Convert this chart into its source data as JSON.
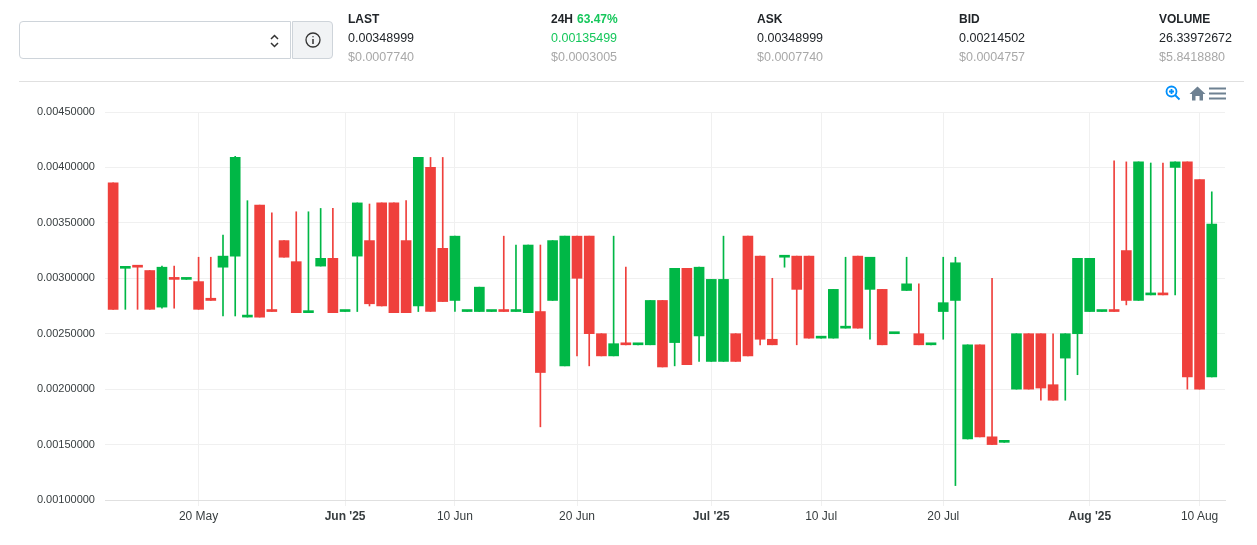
{
  "chart_data": [
    {
      "type": "other",
      "categories": [
        "LAST",
        "24H",
        "ASK",
        "BID",
        "VOLUME"
      ],
      "annotations": [
        "63.47%",
        "0.00348999",
        "$0.0007740",
        "0.00135499",
        "$0.0003005",
        "0.00348999",
        "$0.0007740",
        "0.00214502",
        "$0.0004757",
        "26.33972672",
        "$5.8418880"
      ],
      "colors": [
        "#16c75c",
        "#212529",
        "#a8a8a8",
        "#16c75c",
        "#a8a8a8",
        "#212529",
        "#a8a8a8",
        "#212529",
        "#a8a8a8",
        "#212529",
        "#a8a8a8"
      ]
    },
    {
      "type": "candlestick",
      "x": [
        "2025-05-13",
        "2025-05-14",
        "2025-05-15",
        "2025-05-16",
        "2025-05-17",
        "2025-05-18",
        "2025-05-19",
        "2025-05-20",
        "2025-05-21",
        "2025-05-22",
        "2025-05-23",
        "2025-05-24",
        "2025-05-25",
        "2025-05-26",
        "2025-05-27",
        "2025-05-28",
        "2025-05-29",
        "2025-05-30",
        "2025-05-31",
        "2025-06-01",
        "2025-06-02",
        "2025-06-03",
        "2025-06-04",
        "2025-06-05",
        "2025-06-06",
        "2025-06-07",
        "2025-06-08",
        "2025-06-09",
        "2025-06-10",
        "2025-06-11",
        "2025-06-12",
        "2025-06-13",
        "2025-06-14",
        "2025-06-15",
        "2025-06-16",
        "2025-06-17",
        "2025-06-18",
        "2025-06-19",
        "2025-06-20",
        "2025-06-21",
        "2025-06-22",
        "2025-06-23",
        "2025-06-24",
        "2025-06-25",
        "2025-06-26",
        "2025-06-27",
        "2025-06-28",
        "2025-06-29",
        "2025-06-30",
        "2025-07-01",
        "2025-07-02",
        "2025-07-03",
        "2025-07-04",
        "2025-07-05",
        "2025-07-06",
        "2025-07-07",
        "2025-07-08",
        "2025-07-09",
        "2025-07-10",
        "2025-07-11",
        "2025-07-12",
        "2025-07-13",
        "2025-07-14",
        "2025-07-15",
        "2025-07-16",
        "2025-07-17",
        "2025-07-18",
        "2025-07-19",
        "2025-07-20",
        "2025-07-21",
        "2025-07-22",
        "2025-07-23",
        "2025-07-24",
        "2025-07-25",
        "2025-07-26",
        "2025-07-27",
        "2025-07-28",
        "2025-07-29",
        "2025-07-30",
        "2025-07-31",
        "2025-08-01",
        "2025-08-02",
        "2025-08-03",
        "2025-08-04",
        "2025-08-05",
        "2025-08-06",
        "2025-08-07",
        "2025-08-08",
        "2025-08-09",
        "2025-08-10",
        "2025-08-11"
      ],
      "ohlc": [
        [
          0.00386,
          0.00386,
          0.00272,
          0.00272
        ],
        [
          0.00309,
          0.0031,
          0.00272,
          0.0031
        ],
        [
          0.00311,
          0.00311,
          0.00272,
          0.0031
        ],
        [
          0.00307,
          0.00307,
          0.00272,
          0.00272
        ],
        [
          0.00274,
          0.00311,
          0.00273,
          0.0031
        ],
        [
          0.003,
          0.00311,
          0.00273,
          0.00299
        ],
        [
          0.00299,
          0.003,
          0.00299,
          0.003
        ],
        [
          0.00297,
          0.00319,
          0.00272,
          0.00272
        ],
        [
          0.00282,
          0.00319,
          0.0028,
          0.0028
        ],
        [
          0.0031,
          0.00339,
          0.00266,
          0.0032
        ],
        [
          0.0032,
          0.0041,
          0.00266,
          0.00409
        ],
        [
          0.00265,
          0.0037,
          0.00265,
          0.00266
        ],
        [
          0.00366,
          0.00366,
          0.00265,
          0.00265
        ],
        [
          0.00271,
          0.00359,
          0.0027,
          0.0027
        ],
        [
          0.00334,
          0.00334,
          0.00319,
          0.00319
        ],
        [
          0.00315,
          0.0036,
          0.00269,
          0.00269
        ],
        [
          0.00269,
          0.0036,
          0.00269,
          0.0027
        ],
        [
          0.00311,
          0.00363,
          0.00311,
          0.00318
        ],
        [
          0.00318,
          0.00363,
          0.00269,
          0.00269
        ],
        [
          0.0027,
          0.00271,
          0.0027,
          0.00271
        ],
        [
          0.0032,
          0.00368,
          0.0027,
          0.00368
        ],
        [
          0.00334,
          0.00367,
          0.00275,
          0.00277
        ],
        [
          0.00368,
          0.00368,
          0.00275,
          0.00275
        ],
        [
          0.00368,
          0.00368,
          0.00269,
          0.00269
        ],
        [
          0.00334,
          0.0037,
          0.00269,
          0.00269
        ],
        [
          0.00275,
          0.00409,
          0.0027,
          0.00409
        ],
        [
          0.004,
          0.00409,
          0.0027,
          0.0027
        ],
        [
          0.00327,
          0.00409,
          0.00279,
          0.00279
        ],
        [
          0.0028,
          0.00338,
          0.0027,
          0.00338
        ],
        [
          0.0027,
          0.00271,
          0.0027,
          0.00271
        ],
        [
          0.0027,
          0.00292,
          0.0027,
          0.00292
        ],
        [
          0.0027,
          0.00271,
          0.0027,
          0.00271
        ],
        [
          0.00271,
          0.00338,
          0.0027,
          0.0027
        ],
        [
          0.0027,
          0.0033,
          0.0027,
          0.00271
        ],
        [
          0.00269,
          0.0033,
          0.00269,
          0.0033
        ],
        [
          0.0027,
          0.0033,
          0.00166,
          0.00215
        ],
        [
          0.0028,
          0.00334,
          0.0028,
          0.00334
        ],
        [
          0.00221,
          0.00338,
          0.00221,
          0.00338
        ],
        [
          0.00338,
          0.00338,
          0.0023,
          0.003
        ],
        [
          0.00338,
          0.00338,
          0.00221,
          0.0025
        ],
        [
          0.0025,
          0.0025,
          0.0023,
          0.0023
        ],
        [
          0.0023,
          0.00338,
          0.0023,
          0.00241
        ],
        [
          0.00241,
          0.0031,
          0.0024,
          0.0024
        ],
        [
          0.0024,
          0.00241,
          0.0024,
          0.00241
        ],
        [
          0.0024,
          0.0028,
          0.0024,
          0.0028
        ],
        [
          0.0028,
          0.0028,
          0.0022,
          0.0022
        ],
        [
          0.00242,
          0.00309,
          0.00221,
          0.00309
        ],
        [
          0.00309,
          0.00309,
          0.00222,
          0.00222
        ],
        [
          0.00248,
          0.0031,
          0.00225,
          0.0031
        ],
        [
          0.00225,
          0.00299,
          0.00225,
          0.00299
        ],
        [
          0.00225,
          0.00338,
          0.00225,
          0.00299
        ],
        [
          0.0025,
          0.0025,
          0.00225,
          0.00225
        ],
        [
          0.00338,
          0.00338,
          0.0023,
          0.0023
        ],
        [
          0.0032,
          0.0032,
          0.0024,
          0.00245
        ],
        [
          0.00245,
          0.003,
          0.0024,
          0.0024
        ],
        [
          0.00319,
          0.0032,
          0.0031,
          0.0032
        ],
        [
          0.0032,
          0.0032,
          0.0024,
          0.0029
        ],
        [
          0.0032,
          0.0032,
          0.00246,
          0.00246
        ],
        [
          0.00246,
          0.00247,
          0.00246,
          0.00247
        ],
        [
          0.00246,
          0.0029,
          0.00246,
          0.0029
        ],
        [
          0.00255,
          0.00319,
          0.00255,
          0.00256
        ],
        [
          0.0032,
          0.0032,
          0.00255,
          0.00255
        ],
        [
          0.0029,
          0.00319,
          0.00245,
          0.00319
        ],
        [
          0.0029,
          0.0029,
          0.0024,
          0.0024
        ],
        [
          0.0025,
          0.00251,
          0.0025,
          0.00251
        ],
        [
          0.00289,
          0.00319,
          0.00289,
          0.00295
        ],
        [
          0.0025,
          0.00295,
          0.0024,
          0.0024
        ],
        [
          0.0024,
          0.00241,
          0.0024,
          0.00241
        ],
        [
          0.0027,
          0.00319,
          0.00245,
          0.00278
        ],
        [
          0.0028,
          0.00319,
          0.00113,
          0.00314
        ],
        [
          0.00155,
          0.0024,
          0.00155,
          0.0024
        ],
        [
          0.0024,
          0.0024,
          0.00157,
          0.00157
        ],
        [
          0.00157,
          0.003,
          0.0015,
          0.0015
        ],
        [
          0.00152,
          0.00153,
          0.00152,
          0.00153
        ],
        [
          0.002,
          0.0025,
          0.002,
          0.0025
        ],
        [
          0.0025,
          0.0025,
          0.002,
          0.002
        ],
        [
          0.0025,
          0.0025,
          0.0019,
          0.00201
        ],
        [
          0.00204,
          0.0025,
          0.0019,
          0.0019
        ],
        [
          0.00228,
          0.0025,
          0.0019,
          0.0025
        ],
        [
          0.0025,
          0.00318,
          0.00213,
          0.00318
        ],
        [
          0.0027,
          0.00318,
          0.0027,
          0.00318
        ],
        [
          0.0027,
          0.00271,
          0.0027,
          0.00271
        ],
        [
          0.00271,
          0.00406,
          0.0027,
          0.0027
        ],
        [
          0.00325,
          0.00405,
          0.00276,
          0.0028
        ],
        [
          0.0028,
          0.00405,
          0.0028,
          0.00405
        ],
        [
          0.00285,
          0.00404,
          0.00285,
          0.00286
        ],
        [
          0.00286,
          0.00404,
          0.00285,
          0.00285
        ],
        [
          0.004,
          0.00405,
          0.00285,
          0.00405
        ],
        [
          0.00405,
          0.00405,
          0.002,
          0.00211
        ],
        [
          0.00389,
          0.00389,
          0.002,
          0.002
        ],
        [
          0.00211,
          0.00378,
          0.00211,
          0.00349
        ]
      ],
      "colors": [
        "#ef403c",
        "#00b746",
        "#ef403c",
        "#ef403c",
        "#00b746",
        "#ef403c",
        "#00b746",
        "#ef403c",
        "#ef403c",
        "#00b746",
        "#00b746",
        "#00b746",
        "#ef403c",
        "#ef403c",
        "#ef403c",
        "#ef403c",
        "#00b746",
        "#00b746",
        "#ef403c",
        "#00b746",
        "#00b746",
        "#ef403c",
        "#ef403c",
        "#ef403c",
        "#ef403c",
        "#00b746",
        "#ef403c",
        "#ef403c",
        "#00b746",
        "#00b746",
        "#00b746",
        "#00b746",
        "#ef403c",
        "#00b746",
        "#00b746",
        "#ef403c",
        "#00b746",
        "#00b746",
        "#ef403c",
        "#ef403c",
        "#ef403c",
        "#00b746",
        "#ef403c",
        "#00b746",
        "#00b746",
        "#ef403c",
        "#00b746",
        "#ef403c",
        "#00b746",
        "#00b746",
        "#00b746",
        "#ef403c",
        "#ef403c",
        "#ef403c",
        "#ef403c",
        "#00b746",
        "#ef403c",
        "#ef403c",
        "#00b746",
        "#00b746",
        "#00b746",
        "#ef403c",
        "#00b746",
        "#ef403c",
        "#00b746",
        "#00b746",
        "#ef403c",
        "#00b746",
        "#00b746",
        "#00b746",
        "#00b746",
        "#ef403c",
        "#ef403c",
        "#00b746",
        "#00b746",
        "#ef403c",
        "#ef403c",
        "#ef403c",
        "#00b746",
        "#00b746",
        "#00b746",
        "#00b746",
        "#ef403c",
        "#ef403c",
        "#00b746",
        "#00b746",
        "#ef403c",
        "#00b746",
        "#ef403c",
        "#ef403c",
        "#00b746"
      ],
      "xlim": [
        "2025-05-12T08:00",
        "2025-08-12T02:00"
      ],
      "xticks": [
        {
          "value": "2025-05-20",
          "label": "20 May"
        },
        {
          "value": "2025-06-01",
          "label": "Jun '25"
        },
        {
          "value": "2025-06-10",
          "label": "10 Jun"
        },
        {
          "value": "2025-06-20",
          "label": "20 Jun"
        },
        {
          "value": "2025-07-01",
          "label": "Jul '25"
        },
        {
          "value": "2025-07-10",
          "label": "10 Jul"
        },
        {
          "value": "2025-07-20",
          "label": "20 Jul"
        },
        {
          "value": "2025-08-01",
          "label": "Aug '25"
        },
        {
          "value": "2025-08-10",
          "label": "10 Aug"
        }
      ],
      "ylim": [
        0.001,
        0.0045
      ],
      "yticks": [
        {
          "value": 0.001,
          "label": "0.00100000"
        },
        {
          "value": 0.0015,
          "label": "0.00150000"
        },
        {
          "value": 0.002,
          "label": "0.00200000"
        },
        {
          "value": 0.0025,
          "label": "0.00250000"
        },
        {
          "value": 0.003,
          "label": "0.00300000"
        },
        {
          "value": 0.0035,
          "label": "0.00350000"
        },
        {
          "value": 0.004,
          "label": "0.00400000"
        },
        {
          "value": 0.0045,
          "label": "0.00450000"
        }
      ],
      "grid": true
    }
  ]
}
